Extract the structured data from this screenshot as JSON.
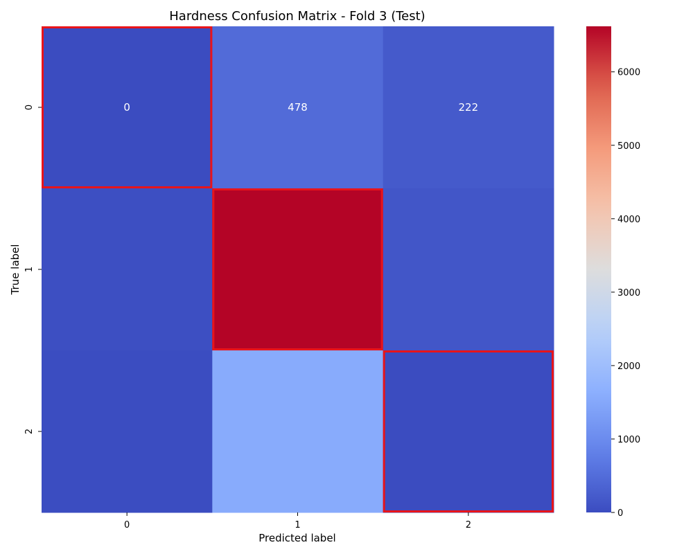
{
  "chart_data": {
    "type": "heatmap",
    "title": "Hardness Confusion Matrix - Fold 3 (Test)",
    "xlabel": "Predicted label",
    "ylabel": "True label",
    "x_categories": [
      "0",
      "1",
      "2"
    ],
    "y_categories": [
      "0",
      "1",
      "2"
    ],
    "matrix": [
      [
        0,
        478,
        222
      ],
      [
        40,
        6620,
        150
      ],
      [
        10,
        1560,
        5
      ]
    ],
    "annotations": [
      [
        "0",
        "478",
        "222"
      ],
      [
        null,
        null,
        null
      ],
      [
        null,
        null,
        null
      ]
    ],
    "colormap": "coolwarm",
    "vmin": 0,
    "vmax": 6620,
    "colorbar_ticks": [
      0,
      1000,
      2000,
      3000,
      4000,
      5000,
      6000
    ],
    "colorbar_tick_labels": [
      "0",
      "1000",
      "2000",
      "3000",
      "4000",
      "5000",
      "6000"
    ],
    "highlighted_cells": [
      [
        0,
        0
      ],
      [
        1,
        1
      ],
      [
        2,
        2
      ]
    ],
    "highlight_color": "#e8141a",
    "colorbar_placement": "right"
  }
}
